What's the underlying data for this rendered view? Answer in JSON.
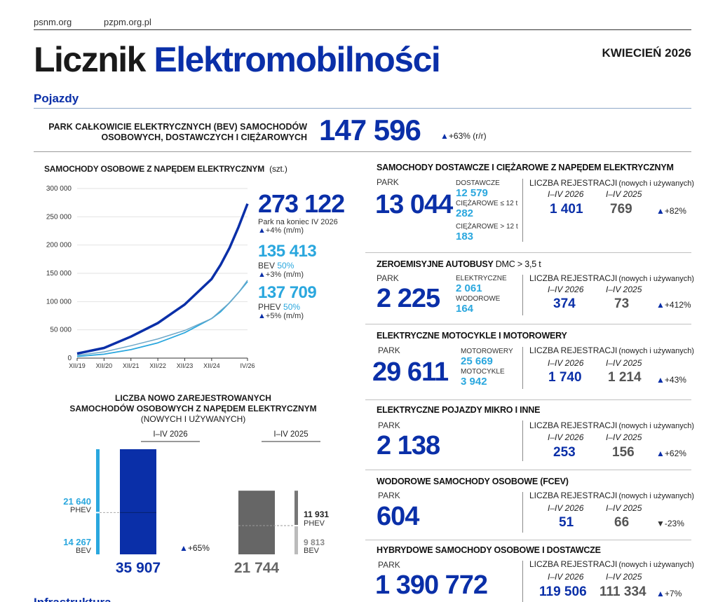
{
  "header": {
    "link1": "psnm.org",
    "link2": "pzpm.org.pl",
    "title_part1": "Licznik",
    "title_part2": "Elektromobilności",
    "date": "KWIECIEŃ 2026"
  },
  "section_pojazdy": "Pojazdy",
  "bev_park": {
    "label_line1": "PARK CAŁKOWICIE ELEKTRYCZNYCH (BEV) SAMOCHODÓW",
    "label_line2": "OSOBOWYCH, DOSTAWCZYCH I CIĘŻAROWYCH",
    "value": "147 596",
    "change": "+63% (r/r)"
  },
  "cars": {
    "title": "SAMOCHODY OSOBOWE Z NAPĘDEM ELEKTRYCZNYM",
    "unit": "(szt.)",
    "total": "273 122",
    "total_note": "Park na koniec IV 2026",
    "total_change": "+4% (m/m)",
    "bev_value": "135 413",
    "bev_label": "BEV",
    "bev_share": "50%",
    "bev_change": "+3% (m/m)",
    "phev_value": "137 709",
    "phev_label": "PHEV",
    "phev_share": "50%",
    "phev_change": "+5% (m/m)"
  },
  "chart_data": [
    {
      "type": "line",
      "y_ticks": [
        "0",
        "50 000",
        "100 000",
        "150 000",
        "200 000",
        "250 000",
        "300 000"
      ],
      "x_ticks": [
        "XII/19",
        "XII/20",
        "XII/21",
        "XII/22",
        "XII/23",
        "XII/24",
        "IV/26"
      ],
      "ylim": [
        0,
        300000
      ],
      "grid": true,
      "colors": {
        "total": "#0a2fa8",
        "bev": "#2aa7de",
        "phev": "#6fa8c8"
      },
      "series": [
        {
          "x": [
            0,
            12,
            24,
            36,
            48,
            60,
            64,
            68,
            72,
            76
          ],
          "values": [
            8000,
            18000,
            38000,
            62000,
            95000,
            140000,
            165000,
            195000,
            232000,
            273122
          ]
        },
        {
          "x": [
            0,
            12,
            24,
            36,
            48,
            60,
            64,
            68,
            72,
            76
          ],
          "values": [
            3000,
            7000,
            15000,
            27000,
            45000,
            70000,
            82000,
            98000,
            116000,
            135413
          ]
        },
        {
          "x": [
            0,
            12,
            24,
            36,
            48,
            60,
            64,
            68,
            72,
            76
          ],
          "values": [
            5000,
            11000,
            22000,
            34000,
            49000,
            70000,
            84000,
            98000,
            116000,
            137709
          ]
        }
      ]
    },
    {
      "type": "bar",
      "title_line1": "LICZBA NOWO ZAREJESTROWANYCH",
      "title_line2": "SAMOCHODÓW OSOBOWYCH Z NAPĘDEM ELEKTRYCZNYM",
      "title_line3": "(NOWYCH I UŻYWANYCH)",
      "categories": [
        "I–IV 2026",
        "I–IV 2025"
      ],
      "totals": [
        "35 907",
        "21 744"
      ],
      "total_values": [
        35907,
        21744
      ],
      "phev": {
        "label": "PHEV",
        "labels": [
          "21 640",
          "11 931"
        ],
        "values": [
          21640,
          11931
        ]
      },
      "bev": {
        "label": "BEV",
        "labels": [
          "14 267",
          "9 813"
        ],
        "values": [
          14267,
          9813
        ]
      },
      "change": "+65%",
      "colors": {
        "y2026": "#0a2fa8",
        "y2025": "#666666",
        "phev_bar": "#2aa7de",
        "bev_bar": "#2aa7de"
      }
    }
  ],
  "reg_label": "LICZBA REJESTRACJI",
  "reg_sub": "(nowych i używanych)",
  "year_a": "I–IV 2026",
  "year_b": "I–IV 2025",
  "park_label": "PARK",
  "vans": {
    "title": "SAMOCHODY DOSTAWCZE I CIĘŻAROWE Z NAPĘDEM ELEKTRYCZNYM",
    "park": "13 044",
    "sub1_label": "DOSTAWCZE",
    "sub1_value": "12 579",
    "sub2_label": "CIĘŻAROWE ≤ 12 t",
    "sub2_value": "282",
    "sub3_label": "CIĘŻAROWE > 12 t",
    "sub3_value": "183",
    "reg_a": "1 401",
    "reg_b": "769",
    "change": "+82%"
  },
  "buses": {
    "title": "ZEROEMISYJNE AUTOBUSY",
    "title_suffix": "DMC > 3,5 t",
    "park": "2 225",
    "sub1_label": "ELEKTRYCZNE",
    "sub1_value": "2 061",
    "sub2_label": "WODOROWE",
    "sub2_value": "164",
    "reg_a": "374",
    "reg_b": "73",
    "change": "+412%"
  },
  "moto": {
    "title": "ELEKTRYCZNE MOTOCYKLE I MOTOROWERY",
    "park": "29 611",
    "sub1_label": "MOTOROWERY",
    "sub1_value": "25 669",
    "sub2_label": "MOTOCYKLE",
    "sub2_value": "3 942",
    "reg_a": "1 740",
    "reg_b": "1 214",
    "change": "+43%"
  },
  "micro": {
    "title": "ELEKTRYCZNE POJAZDY MIKRO I INNE",
    "park": "2 138",
    "reg_a": "253",
    "reg_b": "156",
    "change": "+62%"
  },
  "fcev": {
    "title": "WODOROWE SAMOCHODY OSOBOWE (FCEV)",
    "park": "604",
    "reg_a": "51",
    "reg_b": "66",
    "change": "-23%"
  },
  "hybrid": {
    "title": "HYBRYDOWE SAMOCHODY OSOBOWE I DOSTAWCZE",
    "park": "1 390 772",
    "reg_a": "119 506",
    "reg_b": "111 334",
    "change": "+7%"
  },
  "section_infra": "Infrastruktura"
}
